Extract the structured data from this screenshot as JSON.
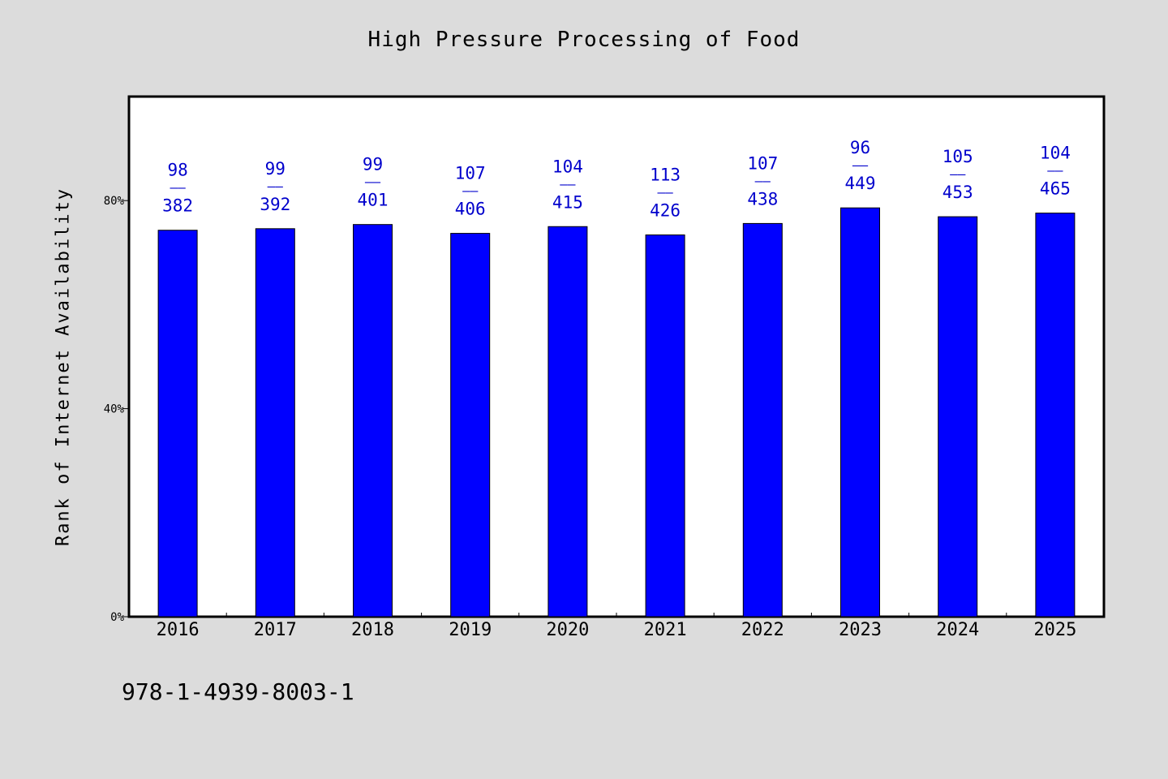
{
  "chart_data": {
    "type": "bar",
    "title": "High Pressure Processing of Food",
    "xlabel": "",
    "ylabel": "Rank of Internet Availability",
    "ylim": [
      0,
      100
    ],
    "yticks": [
      {
        "value": 0,
        "label": "0%"
      },
      {
        "value": 40,
        "label": "40%"
      },
      {
        "value": 80,
        "label": "80%"
      }
    ],
    "categories": [
      "2016",
      "2017",
      "2018",
      "2019",
      "2020",
      "2021",
      "2022",
      "2023",
      "2024",
      "2025"
    ],
    "values": [
      74.3,
      74.6,
      75.4,
      73.7,
      75.0,
      73.4,
      75.6,
      78.6,
      76.9,
      77.6
    ],
    "bar_labels": [
      {
        "top": "98",
        "bottom": "382"
      },
      {
        "top": "99",
        "bottom": "392"
      },
      {
        "top": "99",
        "bottom": "401"
      },
      {
        "top": "107",
        "bottom": "406"
      },
      {
        "top": "104",
        "bottom": "415"
      },
      {
        "top": "113",
        "bottom": "426"
      },
      {
        "top": "107",
        "bottom": "438"
      },
      {
        "top": "96",
        "bottom": "449"
      },
      {
        "top": "105",
        "bottom": "453"
      },
      {
        "top": "104",
        "bottom": "465"
      }
    ],
    "label_separator": "——",
    "grid": false,
    "legend": "none",
    "colors": {
      "bar": "#0000ff",
      "label": "#0000cc",
      "background": "#dcdcdc",
      "plot_background": "#ffffff"
    }
  },
  "footnote": "978-1-4939-8003-1"
}
